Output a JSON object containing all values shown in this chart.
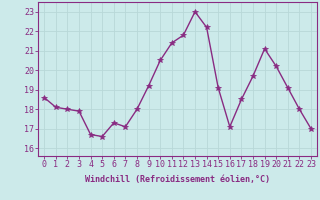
{
  "x": [
    0,
    1,
    2,
    3,
    4,
    5,
    6,
    7,
    8,
    9,
    10,
    11,
    12,
    13,
    14,
    15,
    16,
    17,
    18,
    19,
    20,
    21,
    22,
    23
  ],
  "y": [
    18.6,
    18.1,
    18.0,
    17.9,
    16.7,
    16.6,
    17.3,
    17.1,
    18.0,
    19.2,
    20.5,
    21.4,
    21.8,
    23.0,
    22.2,
    19.1,
    17.1,
    18.5,
    19.7,
    21.1,
    20.2,
    19.1,
    18.0,
    17.0
  ],
  "line_color": "#892b82",
  "marker": "*",
  "marker_size": 4,
  "linewidth": 1.0,
  "bg_color": "#cceaea",
  "grid_color": "#b8d8d8",
  "xlabel": "Windchill (Refroidissement éolien,°C)",
  "xlabel_fontsize": 6.0,
  "xtick_labels": [
    "0",
    "1",
    "2",
    "3",
    "4",
    "5",
    "6",
    "7",
    "8",
    "9",
    "10",
    "11",
    "12",
    "13",
    "14",
    "15",
    "16",
    "17",
    "18",
    "19",
    "20",
    "21",
    "22",
    "23"
  ],
  "ytick_vals": [
    16,
    17,
    18,
    19,
    20,
    21,
    22,
    23
  ],
  "ylim": [
    15.6,
    23.5
  ],
  "xlim": [
    -0.5,
    23.5
  ],
  "tick_color": "#892b82",
  "tick_fontsize": 6.0,
  "spine_color": "#892b82"
}
